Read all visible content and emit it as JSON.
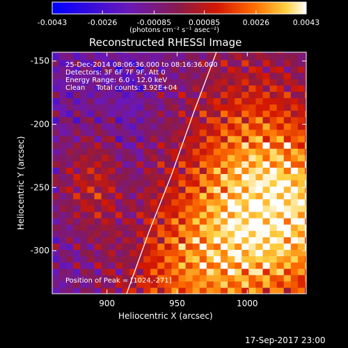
{
  "colorbar": {
    "ticks": [
      "-0.0043",
      "-0.0026",
      "-0.00085",
      "0.00085",
      "0.0026",
      "0.0043"
    ],
    "unit_label": "(photons cm⁻² s⁻¹ asec⁻²)",
    "min": -0.0043,
    "max": 0.0043
  },
  "chart_data": {
    "type": "heatmap",
    "title": "Reconstructed RHESSI Image",
    "xlabel": "Heliocentric X (arcsec)",
    "ylabel": "Heliocentric Y (arcsec)",
    "xlim": [
      861,
      1042
    ],
    "ylim": [
      -334,
      -143
    ],
    "xticks": [
      900,
      950,
      1000
    ],
    "yticks": [
      -150,
      -200,
      -250,
      -300
    ],
    "colormap": "RHESSI heat (blue-purple-red-yellow-white)",
    "annotations": [
      "25-Dec-2014 08:06:36.000 to 08:16:36.000",
      "Detectors: 3F 6F 7F 9F, Att 0",
      "Energy Range: 6.0 - 12.0 keV",
      "Clean     Total counts: 3.92E+04"
    ],
    "peak_label": "Position of Peak = [1024,-271]",
    "peak": [
      1024,
      -271
    ],
    "limb_curve": [
      [
        914,
        -334
      ],
      [
        930,
        -285
      ],
      [
        946,
        -240
      ],
      [
        962,
        -190
      ],
      [
        978,
        -143
      ]
    ]
  },
  "footer": {
    "timestamp": "17-Sep-2017 23:00"
  }
}
